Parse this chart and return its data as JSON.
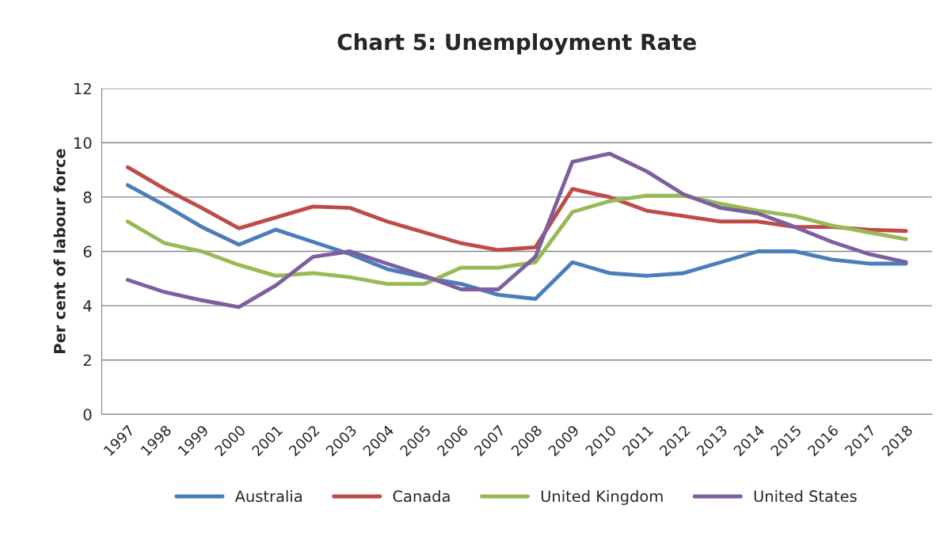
{
  "chart_data": {
    "type": "line",
    "title": "Chart 5: Unemployment Rate",
    "ylabel": "Per cent of labour force",
    "categories": [
      "1997",
      "1998",
      "1999",
      "2000",
      "2001",
      "2002",
      "2003",
      "2004",
      "2005",
      "2006",
      "2007",
      "2008",
      "2009",
      "2010",
      "2011",
      "2012",
      "2013",
      "2014",
      "2015",
      "2016",
      "2017",
      "2018"
    ],
    "series": [
      {
        "name": "Australia",
        "color": "#4a7ebb",
        "values": [
          8.44,
          7.7,
          6.9,
          6.25,
          6.8,
          6.35,
          5.9,
          5.35,
          5.05,
          4.8,
          4.4,
          4.25,
          5.6,
          5.2,
          5.1,
          5.2,
          5.6,
          6.0,
          6.0,
          5.7,
          5.55,
          5.55
        ]
      },
      {
        "name": "Canada",
        "color": "#be4b48",
        "values": [
          9.1,
          8.3,
          7.6,
          6.85,
          7.25,
          7.65,
          7.6,
          7.1,
          6.7,
          6.3,
          6.05,
          6.15,
          8.3,
          8.0,
          7.5,
          7.3,
          7.1,
          7.1,
          6.9,
          6.9,
          6.8,
          6.75
        ]
      },
      {
        "name": "United Kingdom",
        "color": "#98b954",
        "values": [
          7.1,
          6.3,
          6.0,
          5.5,
          5.1,
          5.2,
          5.05,
          4.8,
          4.8,
          5.4,
          5.4,
          5.6,
          7.45,
          7.85,
          8.05,
          8.05,
          7.75,
          7.5,
          7.3,
          6.95,
          6.7,
          6.45
        ]
      },
      {
        "name": "United States",
        "color": "#7d5fa0",
        "values": [
          4.95,
          4.5,
          4.2,
          3.95,
          4.75,
          5.8,
          6.0,
          5.55,
          5.1,
          4.6,
          4.6,
          5.8,
          9.3,
          9.6,
          8.95,
          8.1,
          7.6,
          7.4,
          6.9,
          6.35,
          5.9,
          5.6
        ]
      }
    ],
    "ylim": [
      0,
      12
    ],
    "yticks": [
      0,
      2,
      4,
      6,
      8,
      10,
      12
    ],
    "grid": "y",
    "legend": "bottom",
    "marker": "none",
    "line_style": "solid"
  }
}
